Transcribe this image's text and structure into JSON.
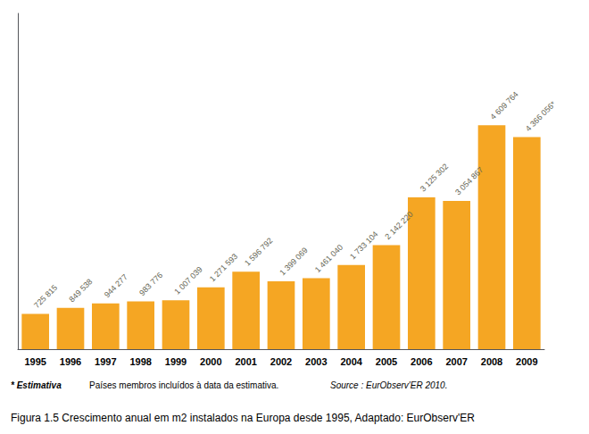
{
  "chart_data": {
    "type": "bar",
    "categories": [
      "1995",
      "1996",
      "1997",
      "1998",
      "1999",
      "2000",
      "2001",
      "2002",
      "2003",
      "2004",
      "2005",
      "2006",
      "2007",
      "2008",
      "2009"
    ],
    "values": [
      725815,
      849538,
      944277,
      983776,
      1007039,
      1271593,
      1596792,
      1399069,
      1461040,
      1733104,
      2142220,
      3125302,
      3054867,
      4609764,
      4366056
    ],
    "value_labels": [
      "725 815",
      "849 538",
      "944 277",
      "983 776",
      "1 007 039",
      "1 271 593",
      "1 596 792",
      "1 399 069",
      "1 461 040",
      "1 733 104",
      "2 142 220",
      "3 125 302",
      "3 054 867",
      "4 609 764",
      "4 366 056*"
    ],
    "data_labels": true,
    "color": "#F5A623",
    "ylim": [
      0,
      6914646
    ],
    "tick_labels": "x",
    "grid": false,
    "annotations": [
      "* Estimativa",
      "Países membros incluídos à data da estimativa.",
      "Source : EurObserv'ER 2010.",
      "Figura 1.5 Crescimento anual em m2 instalados na Europa desde 1995, Adaptado: EurObserv'ER"
    ]
  }
}
